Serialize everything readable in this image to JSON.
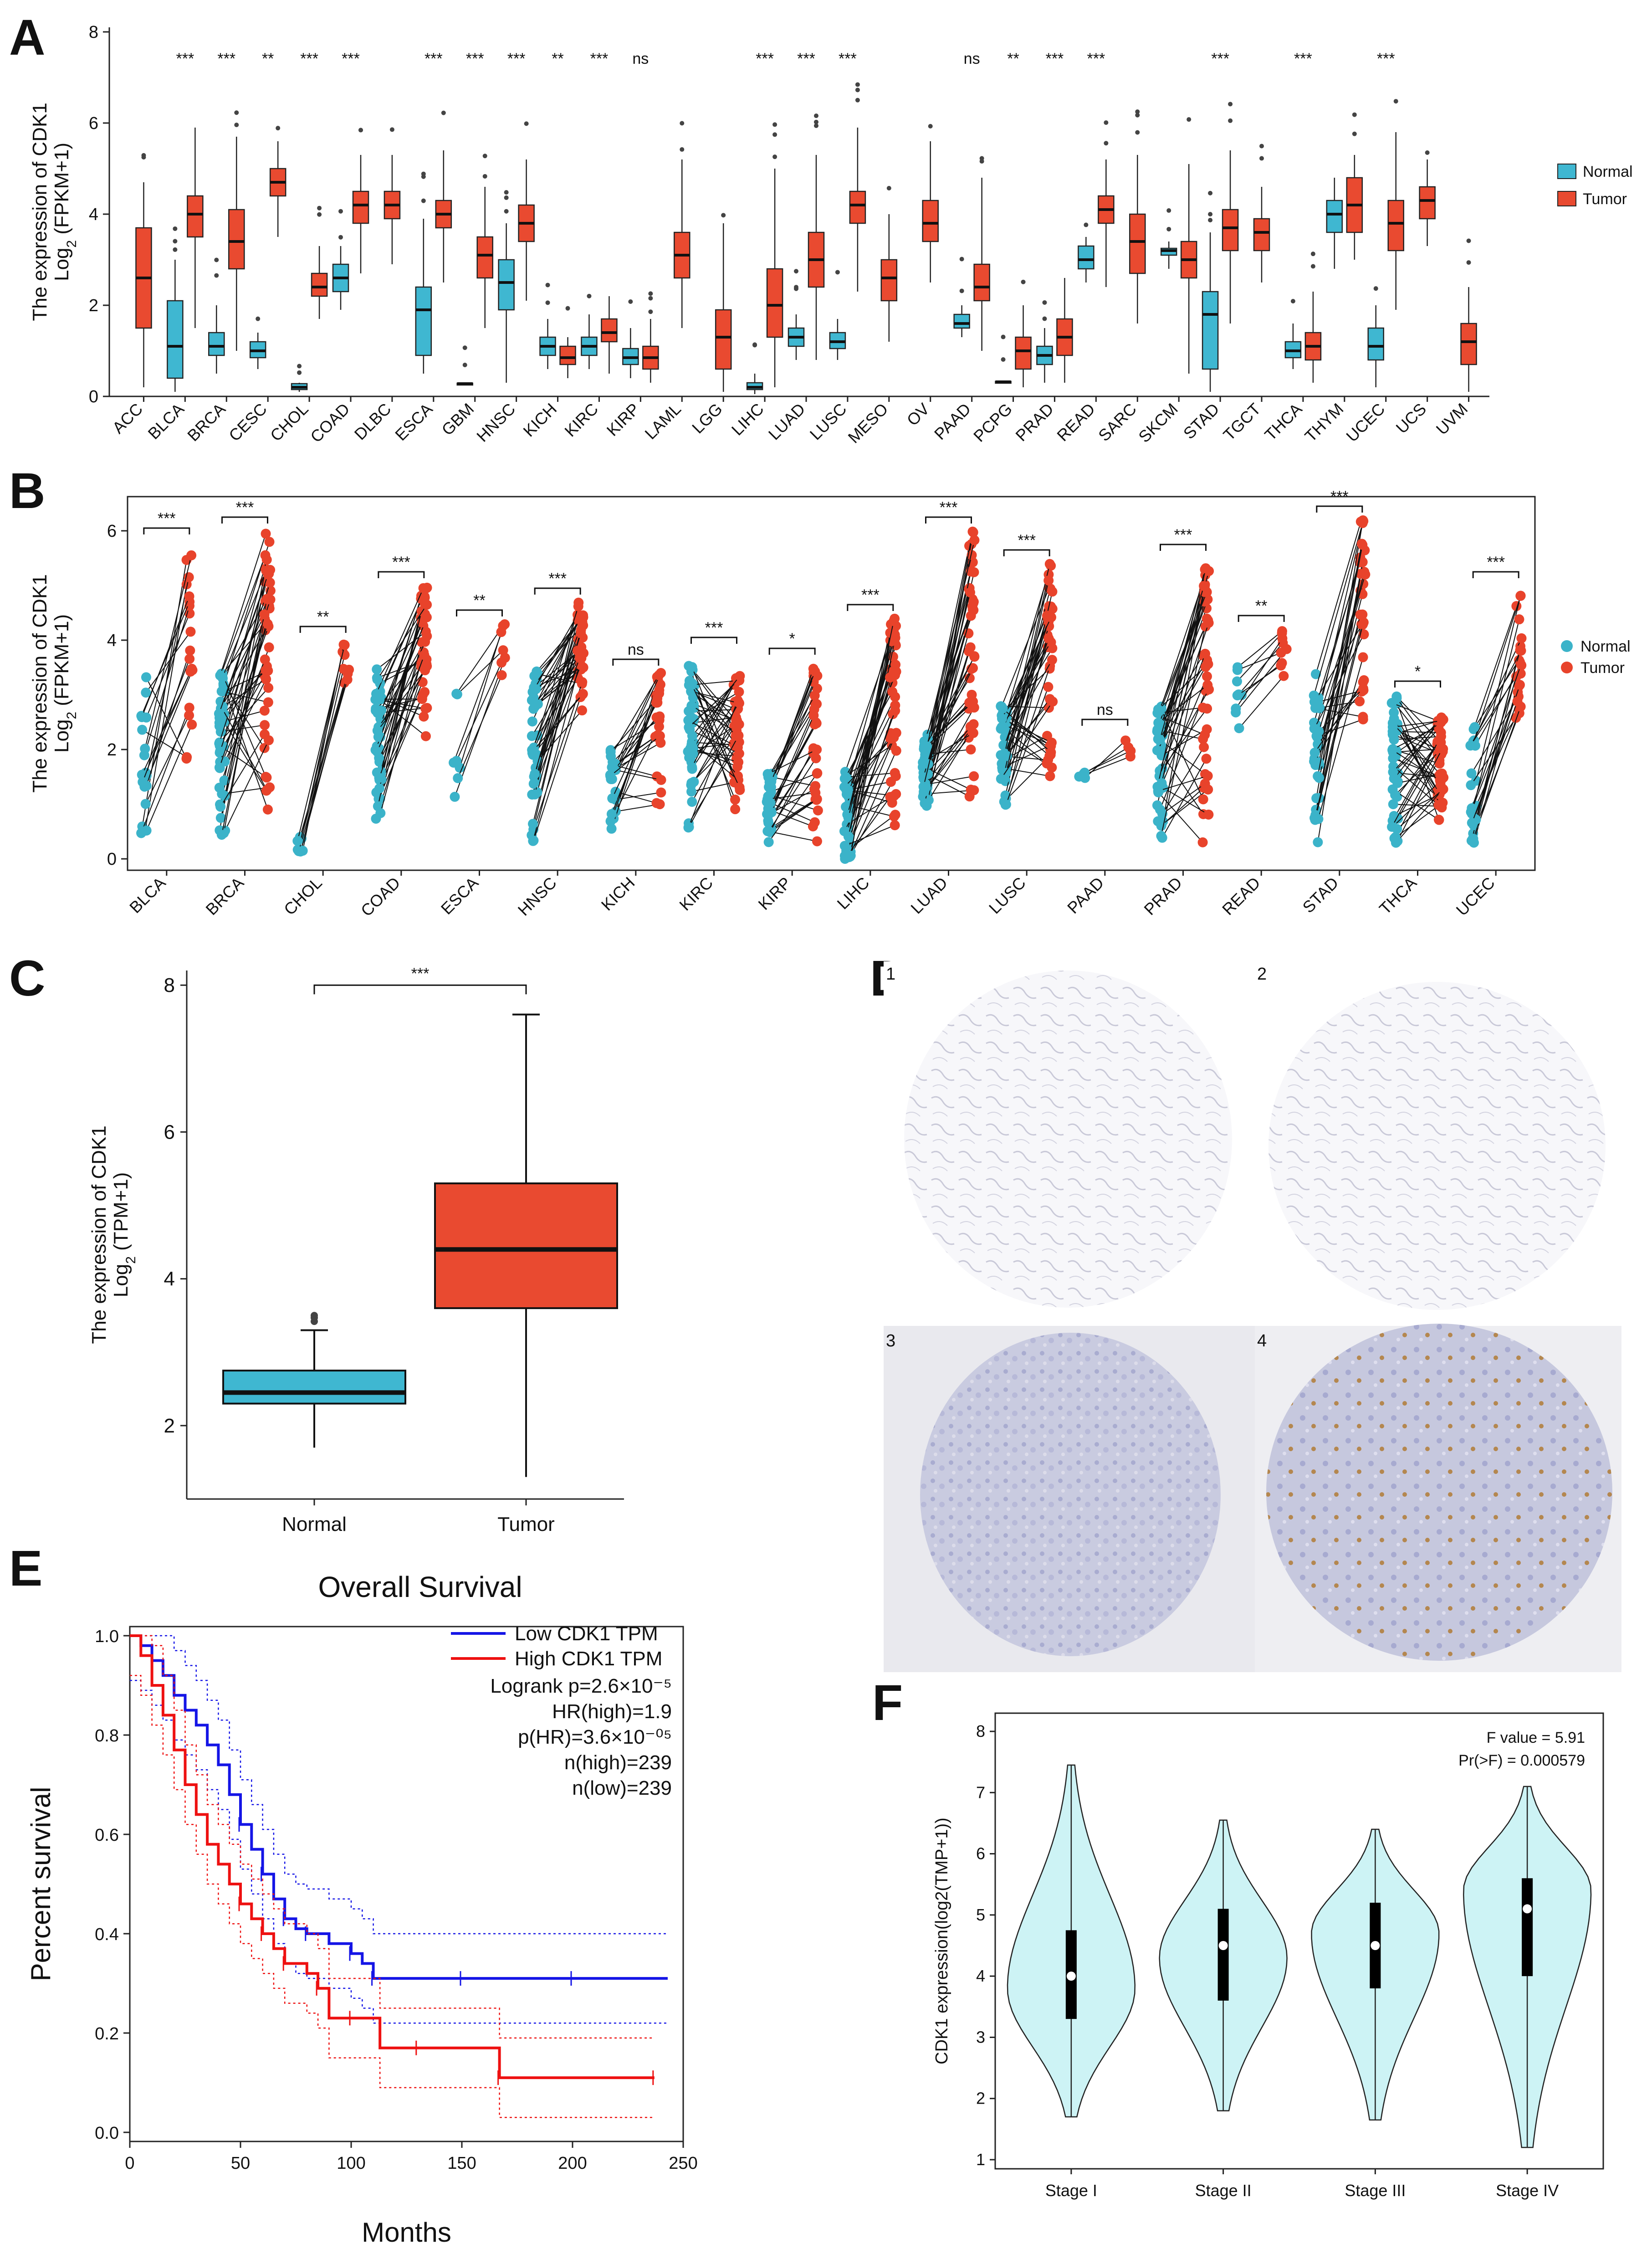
{
  "panel_labels": [
    "A",
    "B",
    "C",
    "D",
    "E",
    "F"
  ],
  "colors": {
    "normal": "#3bb3c9",
    "tumor": "#e8432b",
    "normal_box": "#3fb7d1",
    "tumor_box": "#e94a30",
    "violin": "#cdf3f5",
    "km_low": "#1515e6",
    "km_high": "#ee1111"
  },
  "chart_data": [
    {
      "panel": "A",
      "type": "box",
      "ylabel_line1": "The expression of CDK1",
      "ylabel_line2": "Log2 (FPKM+1)",
      "yticks": [
        "0",
        "2",
        "4",
        "6",
        "8"
      ],
      "ylim": [
        0,
        8
      ],
      "legend": [
        "Normal",
        "Tumor"
      ],
      "categories": [
        "ACC",
        "BLCA",
        "BRCA",
        "CESC",
        "CHOL",
        "COAD",
        "DLBC",
        "ESCA",
        "GBM",
        "HNSC",
        "KICH",
        "KIRC",
        "KIRP",
        "LAML",
        "LGG",
        "LIHC",
        "LUAD",
        "LUSC",
        "MESO",
        "OV",
        "PAAD",
        "PCPG",
        "PRAD",
        "READ",
        "SARC",
        "SKCM",
        "STAD",
        "TGCT",
        "THCA",
        "THYM",
        "UCEC",
        "UCS",
        "UVM"
      ],
      "significance": [
        "",
        "***",
        "***",
        "**",
        "***",
        "***",
        "",
        "***",
        "***",
        "***",
        "**",
        "***",
        "ns",
        "",
        "",
        "***",
        "***",
        "***",
        "",
        "",
        "ns",
        "**",
        "***",
        "***",
        "",
        "",
        "***",
        "",
        "***",
        "",
        "***",
        "",
        ""
      ],
      "normal": [
        null,
        [
          0.1,
          0.4,
          1.1,
          2.1,
          3.0
        ],
        [
          0.5,
          0.9,
          1.1,
          1.4,
          2.0
        ],
        [
          0.6,
          0.85,
          1.0,
          1.2,
          1.4
        ],
        [
          0.1,
          0.15,
          0.2,
          0.28,
          0.3
        ],
        [
          1.9,
          2.3,
          2.6,
          2.9,
          3.3
        ],
        null,
        [
          0.5,
          0.9,
          1.9,
          2.4,
          3.9
        ],
        [
          0.25,
          0.26,
          0.28,
          0.29,
          0.3
        ],
        [
          0.3,
          1.9,
          2.5,
          3.0,
          3.8
        ],
        [
          0.6,
          0.9,
          1.1,
          1.3,
          1.7
        ],
        [
          0.6,
          0.9,
          1.1,
          1.3,
          1.8
        ],
        [
          0.4,
          0.7,
          0.85,
          1.05,
          1.5
        ],
        null,
        null,
        [
          0.05,
          0.15,
          0.2,
          0.3,
          0.5
        ],
        [
          0.8,
          1.1,
          1.3,
          1.5,
          1.8
        ],
        [
          0.8,
          1.05,
          1.2,
          1.4,
          1.7
        ],
        null,
        null,
        [
          1.3,
          1.5,
          1.6,
          1.8,
          2.0
        ],
        [
          0.3,
          0.31,
          0.32,
          0.33,
          0.35
        ],
        [
          0.3,
          0.7,
          0.9,
          1.1,
          1.5
        ],
        [
          2.5,
          2.8,
          3.0,
          3.3,
          3.5
        ],
        null,
        [
          2.8,
          3.1,
          3.2,
          3.25,
          3.4
        ],
        [
          0.1,
          0.6,
          1.8,
          2.3,
          3.6
        ],
        null,
        [
          0.6,
          0.85,
          1.0,
          1.2,
          1.6
        ],
        [
          2.8,
          3.6,
          4.0,
          4.3,
          4.8
        ],
        [
          0.2,
          0.8,
          1.1,
          1.5,
          2.0
        ],
        null,
        null
      ],
      "tumor": [
        [
          0.2,
          1.5,
          2.6,
          3.7,
          4.7
        ],
        [
          1.5,
          3.5,
          4.0,
          4.4,
          5.9
        ],
        [
          1.0,
          2.8,
          3.4,
          4.1,
          5.7
        ],
        [
          3.5,
          4.4,
          4.7,
          5.0,
          5.6
        ],
        [
          1.7,
          2.2,
          2.4,
          2.7,
          3.3
        ],
        [
          2.7,
          3.8,
          4.2,
          4.5,
          5.3
        ],
        [
          2.9,
          3.9,
          4.2,
          4.5,
          5.3
        ],
        [
          2.5,
          3.7,
          4.0,
          4.3,
          5.4
        ],
        [
          1.5,
          2.6,
          3.1,
          3.5,
          4.6
        ],
        [
          2.1,
          3.4,
          3.8,
          4.2,
          5.2
        ],
        [
          0.4,
          0.7,
          0.85,
          1.1,
          1.3
        ],
        [
          0.5,
          1.2,
          1.4,
          1.7,
          2.2
        ],
        [
          0.3,
          0.6,
          0.85,
          1.1,
          1.7
        ],
        [
          1.5,
          2.6,
          3.1,
          3.6,
          5.2
        ],
        [
          0.1,
          0.6,
          1.3,
          1.9,
          3.8
        ],
        [
          0.2,
          1.3,
          2.0,
          2.8,
          5.0
        ],
        [
          0.8,
          2.4,
          3.0,
          3.6,
          5.3
        ],
        [
          2.3,
          3.8,
          4.2,
          4.5,
          5.9
        ],
        [
          1.2,
          2.1,
          2.6,
          3.0,
          4.0
        ],
        [
          2.5,
          3.4,
          3.8,
          4.3,
          5.6
        ],
        [
          1.0,
          2.1,
          2.4,
          2.9,
          4.8
        ],
        [
          0.2,
          0.6,
          1.0,
          1.3,
          2.0
        ],
        [
          0.3,
          0.9,
          1.3,
          1.7,
          2.6
        ],
        [
          2.4,
          3.8,
          4.1,
          4.4,
          5.2
        ],
        [
          1.6,
          2.7,
          3.4,
          4.0,
          5.3
        ],
        [
          0.5,
          2.6,
          3.0,
          3.4,
          5.1
        ],
        [
          1.6,
          3.2,
          3.7,
          4.1,
          5.4
        ],
        [
          2.5,
          3.2,
          3.6,
          3.9,
          4.6
        ],
        [
          0.3,
          0.8,
          1.1,
          1.4,
          2.3
        ],
        [
          3.0,
          3.6,
          4.2,
          4.8,
          5.3
        ],
        [
          1.9,
          3.2,
          3.8,
          4.3,
          5.8
        ],
        [
          3.3,
          3.9,
          4.3,
          4.6,
          5.2
        ],
        [
          0.1,
          0.7,
          1.2,
          1.6,
          2.4
        ]
      ]
    },
    {
      "panel": "B",
      "type": "paired-scatter",
      "ylabel_line1": "The expression of CDK1",
      "ylabel_line2": "Log2 (FPKM+1)",
      "yticks": [
        "0",
        "2",
        "4",
        "6"
      ],
      "ylim": [
        0,
        6.5
      ],
      "legend": [
        "Normal",
        "Tumor"
      ],
      "categories": [
        "BLCA",
        "BRCA",
        "CHOL",
        "COAD",
        "ESCA",
        "HNSC",
        "KICH",
        "KIRC",
        "KIRP",
        "LIHC",
        "LUAD",
        "LUSC",
        "PAAD",
        "PRAD",
        "READ",
        "STAD",
        "THCA",
        "UCEC"
      ],
      "significance": [
        "***",
        "***",
        "**",
        "***",
        "**",
        "***",
        "ns",
        "***",
        "*",
        "***",
        "***",
        "***",
        "ns",
        "***",
        "**",
        "***",
        "*",
        "***"
      ],
      "n_pairs": [
        19,
        113,
        9,
        41,
        7,
        43,
        25,
        72,
        32,
        50,
        58,
        49,
        4,
        52,
        9,
        32,
        59,
        23
      ],
      "normal_range": [
        [
          0.1,
          3.4
        ],
        [
          0.3,
          3.4
        ],
        [
          0.1,
          0.4
        ],
        [
          0.7,
          3.6
        ],
        [
          0.5,
          3.1
        ],
        [
          0.3,
          3.6
        ],
        [
          0.5,
          2.1
        ],
        [
          0.5,
          3.8
        ],
        [
          0.3,
          1.6
        ],
        [
          0.0,
          1.6
        ],
        [
          0.9,
          2.3
        ],
        [
          0.9,
          2.8
        ],
        [
          1.3,
          1.8
        ],
        [
          0.2,
          2.9
        ],
        [
          2.3,
          3.8
        ],
        [
          0.1,
          3.4
        ],
        [
          0.2,
          3.0
        ],
        [
          0.2,
          2.5
        ]
      ],
      "tumor_range": [
        [
          1.7,
          5.8
        ],
        [
          0.7,
          6.0
        ],
        [
          1.2,
          4.0
        ],
        [
          2.2,
          5.0
        ],
        [
          2.8,
          4.3
        ],
        [
          2.7,
          4.7
        ],
        [
          0.2,
          3.4
        ],
        [
          0.4,
          3.5
        ],
        [
          0.1,
          3.6
        ],
        [
          0.4,
          4.4
        ],
        [
          0.9,
          6.0
        ],
        [
          1.2,
          5.4
        ],
        [
          1.8,
          2.3
        ],
        [
          0.2,
          5.5
        ],
        [
          3.3,
          4.2
        ],
        [
          1.8,
          6.2
        ],
        [
          0.5,
          2.6
        ],
        [
          1.8,
          5.0
        ]
      ]
    },
    {
      "panel": "C",
      "type": "box",
      "ylabel_line1": "The expression of CDK1",
      "ylabel_line2": "Log2 (TPM+1)",
      "yticks": [
        "2",
        "4",
        "6",
        "8"
      ],
      "ylim": [
        1.0,
        8.2
      ],
      "categories": [
        "Normal",
        "Tumor"
      ],
      "significance": "***",
      "normal": [
        1.7,
        2.3,
        2.45,
        2.75,
        3.3
      ],
      "tumor": [
        1.3,
        3.6,
        4.4,
        5.3,
        7.6
      ],
      "normal_outliers": [
        3.42,
        3.47,
        3.5
      ]
    },
    {
      "panel": "E",
      "type": "line",
      "title": "Overall Survival",
      "xlabel": "Months",
      "ylabel": "Percent survival",
      "xticks": [
        "0",
        "50",
        "100",
        "150",
        "200",
        "250"
      ],
      "yticks": [
        "0.0",
        "0.2",
        "0.4",
        "0.6",
        "0.8",
        "1.0"
      ],
      "xlim": [
        0,
        250
      ],
      "ylim": [
        0,
        1
      ],
      "legend": [
        "Low CDK1 TPM",
        "High CDK1 TPM"
      ],
      "stats": [
        "Logrank p=2.6×10⁻⁵",
        "HR(high)=1.9",
        "p(HR)=3.6×10⁻⁰⁵",
        "n(high)=239",
        "n(low)=239"
      ],
      "series": [
        {
          "name": "Low CDK1 TPM",
          "x": [
            0,
            5,
            10,
            15,
            20,
            25,
            30,
            35,
            40,
            45,
            50,
            55,
            60,
            65,
            70,
            75,
            80,
            90,
            100,
            105,
            110,
            130,
            150,
            180,
            200,
            243
          ],
          "y": [
            1.0,
            0.98,
            0.95,
            0.92,
            0.88,
            0.85,
            0.82,
            0.78,
            0.74,
            0.68,
            0.62,
            0.57,
            0.52,
            0.47,
            0.43,
            0.41,
            0.4,
            0.38,
            0.36,
            0.34,
            0.31,
            0.31,
            0.31,
            0.31,
            0.31,
            0.31
          ]
        },
        {
          "name": "High CDK1 TPM",
          "x": [
            0,
            5,
            10,
            15,
            20,
            25,
            30,
            35,
            40,
            45,
            50,
            55,
            60,
            65,
            70,
            80,
            85,
            90,
            100,
            113,
            130,
            150,
            167,
            200,
            237
          ],
          "y": [
            1.0,
            0.96,
            0.9,
            0.84,
            0.77,
            0.7,
            0.64,
            0.58,
            0.54,
            0.5,
            0.46,
            0.43,
            0.4,
            0.37,
            0.34,
            0.32,
            0.29,
            0.23,
            0.23,
            0.17,
            0.17,
            0.17,
            0.11,
            0.11,
            0.11
          ]
        }
      ]
    },
    {
      "panel": "F",
      "type": "violin",
      "ylabel": "CDK1 expression(log2(TMP+1))",
      "yticks": [
        "1",
        "2",
        "3",
        "4",
        "5",
        "6",
        "7",
        "8"
      ],
      "ylim": [
        1,
        8
      ],
      "categories": [
        "Stage I",
        "Stage II",
        "Stage III",
        "Stage IV"
      ],
      "stats": [
        "F value = 5.91",
        "Pr(>F) = 0.000579"
      ],
      "ranges": [
        [
          1.7,
          7.45
        ],
        [
          1.8,
          6.55
        ],
        [
          1.65,
          6.4
        ],
        [
          1.2,
          7.1
        ]
      ],
      "quartiles": [
        [
          3.3,
          4.0,
          4.75
        ],
        [
          3.6,
          4.5,
          5.1
        ],
        [
          3.8,
          4.5,
          5.2
        ],
        [
          4.0,
          5.1,
          5.6
        ]
      ],
      "widest_at": [
        3.8,
        4.3,
        4.7,
        5.4
      ]
    }
  ],
  "ihc": {
    "labels": [
      "1",
      "2",
      "3",
      "4"
    ]
  }
}
